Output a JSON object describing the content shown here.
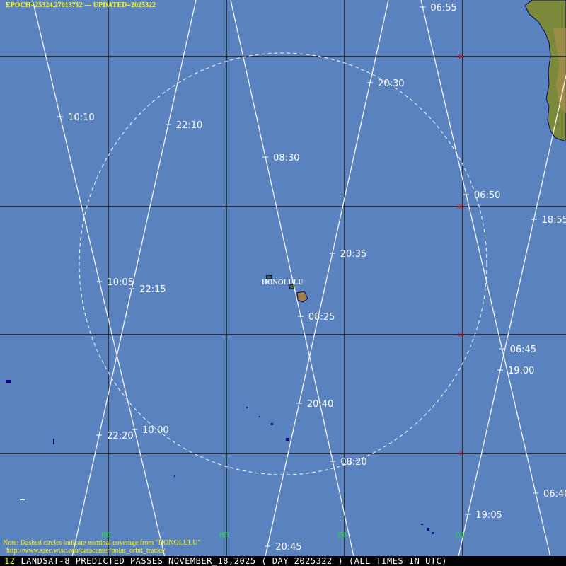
{
  "header": {
    "epoch": "EPOCH=25324.27013712",
    "sep": " --- ",
    "updated": "UPDATED=2025322"
  },
  "city": "HONOLULU",
  "latitude_labels": [
    "45",
    "30",
    "15",
    "0"
  ],
  "longitude_labels": [
    "180",
    "165",
    "150",
    "135"
  ],
  "colors": {
    "ocean": "#5a82bf",
    "lat_label": "#ff0000",
    "lon_label": "#00ff00",
    "track": "#ffffff",
    "note": "#ffff00"
  },
  "tracks": [
    {
      "direction": "descending",
      "times": [
        "10:10",
        "10:05",
        "10:00"
      ]
    },
    {
      "direction": "ascending",
      "times": [
        "22:10",
        "22:15",
        "22:20"
      ]
    },
    {
      "direction": "descending",
      "times": [
        "08:30",
        "08:25",
        "08:20"
      ]
    },
    {
      "direction": "ascending",
      "times": [
        "20:30",
        "20:35",
        "20:40",
        "20:45"
      ]
    },
    {
      "direction": "descending",
      "times": [
        "06:55",
        "06:50",
        "06:45",
        "06:40"
      ]
    },
    {
      "direction": "ascending",
      "times": [
        "18:55",
        "19:00",
        "19:05"
      ]
    }
  ],
  "note": {
    "line1": "Note: Dashed circles indicate nominal coverage from \"HONOLULU\"",
    "line2": "http://www.ssec.wisc.edu/datacenter/polar_orbit_tracks/"
  },
  "footer": {
    "number": "12",
    "title": "LANDSAT-8 PREDICTED PASSES NOVEMBER_18,2025 ( DAY 2025322 ) (ALL TIMES IN UTC)"
  }
}
